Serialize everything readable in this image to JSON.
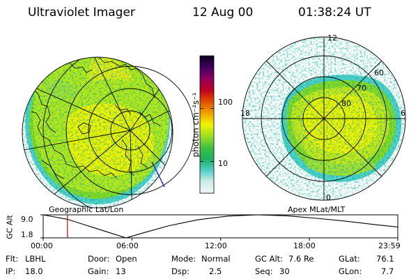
{
  "header": {
    "instrument": "Ultraviolet Imager",
    "date": "12 Aug 00",
    "time": "01:38:24 UT"
  },
  "colors": {
    "auroral_yellow": "#f2f200",
    "auroral_green": "#88d820",
    "auroral_cyan": "#50d0c8",
    "marker_line": "#d00000",
    "coastline": "#000000",
    "terminator": "#2020c0"
  },
  "colorbar": {
    "label": "photon cm⁻²s⁻¹",
    "ticks": [
      "100",
      "10"
    ],
    "tick_values": [
      100,
      10
    ],
    "range": [
      2.5,
      1000
    ],
    "scale": "log",
    "stops": [
      "#f0f4f4",
      "#cfeeea",
      "#50d0c8",
      "#20b060",
      "#40c040",
      "#a0e020",
      "#f2f200",
      "#f0a000",
      "#e05000",
      "#c00020",
      "#900060",
      "#400060",
      "#100020"
    ]
  },
  "geo_map": {
    "label": "Geographic Lat/Lon",
    "projection": "polar-stereographic"
  },
  "mag_map": {
    "label": "Apex MLat/MLT",
    "mlt_labels": [
      "12",
      "18",
      "6",
      "0"
    ],
    "mlat_labels": [
      "60",
      "70",
      "80"
    ]
  },
  "gc_alt_plot": {
    "ylabel": "GC Alt",
    "yticks": [
      "9.0",
      "1.8"
    ],
    "ytick_values": [
      9.0,
      1.8
    ],
    "xticks": [
      "00:00",
      "06:00",
      "12:00",
      "18:00",
      "23:59"
    ],
    "xtick_hours": [
      0,
      6,
      12,
      18,
      23.98
    ],
    "current_time_hours": 1.64,
    "orbit": [
      {
        "h": 0,
        "alt": 9.0
      },
      {
        "h": 1.64,
        "alt": 7.6
      },
      {
        "h": 3,
        "alt": 5.6
      },
      {
        "h": 4.5,
        "alt": 3.4
      },
      {
        "h": 5.6,
        "alt": 1.8
      },
      {
        "h": 6.8,
        "alt": 3.4
      },
      {
        "h": 8.5,
        "alt": 5.6
      },
      {
        "h": 10.5,
        "alt": 7.5
      },
      {
        "h": 12.5,
        "alt": 8.6
      },
      {
        "h": 14.5,
        "alt": 9.0
      },
      {
        "h": 16.5,
        "alt": 8.7
      },
      {
        "h": 18.5,
        "alt": 7.9
      },
      {
        "h": 20.5,
        "alt": 7.0
      },
      {
        "h": 22.5,
        "alt": 5.9
      },
      {
        "h": 23.98,
        "alt": 5.2
      }
    ]
  },
  "info": {
    "filter": {
      "label": "Flt:",
      "value": "LBHL"
    },
    "ip": {
      "label": "IP:",
      "value": "18.0"
    },
    "door": {
      "label": "Door:",
      "value": "Open"
    },
    "gain": {
      "label": "Gain:",
      "value": "13"
    },
    "mode": {
      "label": "Mode:",
      "value": "Normal"
    },
    "dsp": {
      "label": "Dsp:",
      "value": "2.5"
    },
    "gc_alt": {
      "label": "GC Alt:",
      "value": "7.6 Re"
    },
    "seq": {
      "label": "Seq:",
      "value": "30"
    },
    "glat": {
      "label": "GLat:",
      "value": "76.1"
    },
    "glon": {
      "label": "GLon:",
      "value": "7.7"
    }
  }
}
